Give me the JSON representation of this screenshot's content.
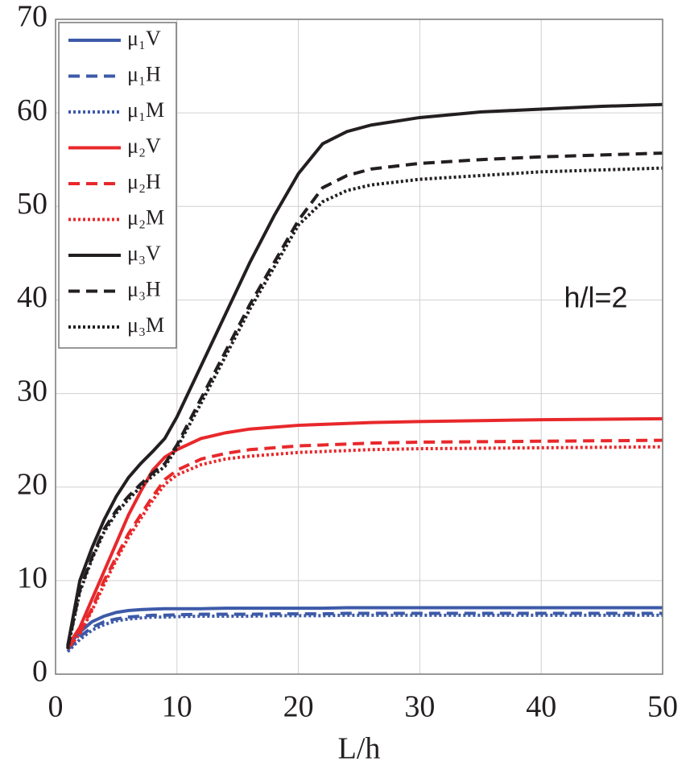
{
  "chart_data": {
    "type": "line",
    "xlabel": "L/h",
    "annotation": "h/l=2",
    "x": [
      1,
      2,
      3,
      4,
      5,
      6,
      7,
      8,
      9,
      10,
      12,
      14,
      16,
      18,
      20,
      22,
      24,
      26,
      30,
      35,
      40,
      45,
      50
    ],
    "xlim": [
      0,
      50
    ],
    "xticks": [
      0,
      10,
      20,
      30,
      40,
      50
    ],
    "ylim": [
      0,
      70
    ],
    "yticks": [
      0,
      10,
      20,
      30,
      40,
      50,
      60,
      70
    ],
    "grid": true,
    "legend": "upper left",
    "series": [
      {
        "name": "μ₁V",
        "color": "#3d5aa8",
        "linestyle": "solid",
        "values": [
          3,
          4.5,
          5.6,
          6.2,
          6.6,
          6.8,
          6.9,
          6.95,
          7,
          7,
          7,
          7.05,
          7.05,
          7.05,
          7.05,
          7.05,
          7.1,
          7.1,
          7.1,
          7.1,
          7.1,
          7.1,
          7.1
        ]
      },
      {
        "name": "μ₁H",
        "color": "#3d5aa8",
        "linestyle": "dashed",
        "values": [
          2.6,
          4,
          5,
          5.6,
          5.9,
          6.1,
          6.2,
          6.3,
          6.3,
          6.35,
          6.4,
          6.4,
          6.4,
          6.45,
          6.45,
          6.45,
          6.5,
          6.5,
          6.5,
          6.5,
          6.5,
          6.5,
          6.5
        ]
      },
      {
        "name": "μ₁M",
        "color": "#3d5aa8",
        "linestyle": "dotted",
        "values": [
          2.4,
          3.7,
          4.7,
          5.3,
          5.7,
          5.9,
          6,
          6.1,
          6.1,
          6.15,
          6.2,
          6.2,
          6.2,
          6.25,
          6.25,
          6.25,
          6.3,
          6.3,
          6.3,
          6.3,
          6.3,
          6.3,
          6.3
        ]
      },
      {
        "name": "μ₂V",
        "color": "#e8282b",
        "linestyle": "solid",
        "values": [
          3,
          5,
          8,
          11,
          14,
          17,
          19.5,
          21.8,
          23.2,
          24,
          25.2,
          25.8,
          26.2,
          26.4,
          26.6,
          26.7,
          26.8,
          26.9,
          27,
          27.1,
          27.2,
          27.25,
          27.3
        ]
      },
      {
        "name": "μ₂H",
        "color": "#e8282b",
        "linestyle": "dashed",
        "values": [
          2.8,
          4.5,
          7,
          10,
          12.5,
          15,
          17,
          19,
          20.8,
          21.8,
          23,
          23.6,
          24,
          24.2,
          24.4,
          24.5,
          24.6,
          24.7,
          24.8,
          24.85,
          24.9,
          24.95,
          25
        ]
      },
      {
        "name": "μ₂M",
        "color": "#e8282b",
        "linestyle": "dotted",
        "values": [
          2.7,
          4.3,
          6.8,
          9.6,
          12.2,
          14.6,
          16.6,
          18.6,
          20.3,
          21.3,
          22.4,
          23,
          23.3,
          23.5,
          23.7,
          23.8,
          23.9,
          24,
          24.1,
          24.15,
          24.2,
          24.25,
          24.3
        ]
      },
      {
        "name": "μ₃V",
        "color": "#231f20",
        "linestyle": "solid",
        "values": [
          3,
          10,
          13.5,
          16.5,
          19,
          21,
          22.5,
          23.8,
          25.2,
          27.5,
          33,
          38.5,
          44,
          49,
          53.5,
          56.7,
          58,
          58.7,
          59.5,
          60.1,
          60.4,
          60.7,
          60.9
        ]
      },
      {
        "name": "μ₃H",
        "color": "#231f20",
        "linestyle": "dashed",
        "values": [
          2.8,
          9,
          12.5,
          15.5,
          17.5,
          19,
          20.3,
          21.5,
          22.5,
          24.5,
          29.5,
          34.5,
          39.5,
          44,
          48.5,
          52,
          53.3,
          54,
          54.6,
          55,
          55.3,
          55.5,
          55.7
        ]
      },
      {
        "name": "μ₃M",
        "color": "#231f20",
        "linestyle": "dotted",
        "values": [
          2.7,
          8.8,
          12.3,
          15.2,
          17.2,
          18.7,
          20,
          21.2,
          22.2,
          24.2,
          29,
          34,
          39,
          43.5,
          48,
          50.5,
          51.7,
          52.3,
          52.9,
          53.3,
          53.7,
          53.9,
          54.1
        ]
      }
    ]
  }
}
